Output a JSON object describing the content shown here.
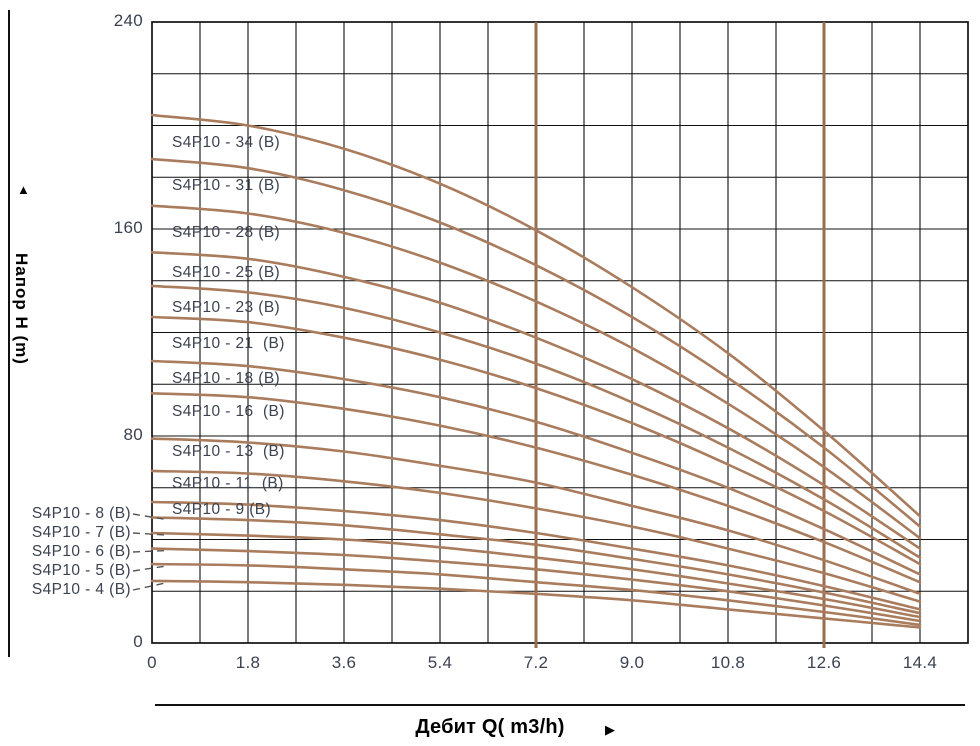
{
  "icons": {
    "up_arrow": "▲",
    "right_arrow": "▶"
  },
  "colors": {
    "curve": "#aa7c5e",
    "limit_line": "#996e50",
    "grid": "#111111",
    "tick_text": "#3b4250",
    "title_text": "#000000"
  },
  "chart_data": {
    "type": "line",
    "title": "",
    "xlabel": "Дебит Q( m3/h)",
    "ylabel": "Напор H (m)",
    "grid": true,
    "xlim": [
      0,
      15.3
    ],
    "ylim": [
      0,
      240
    ],
    "x_minor_step": 0.9,
    "y_minor_step": 20,
    "x": [
      0,
      1.8,
      3.6,
      5.4,
      7.2,
      9.0,
      10.8,
      12.6,
      14.4
    ],
    "x_tick_labels": [
      "0",
      "1.8",
      "3.6",
      "5.4",
      "7.2",
      "9.0",
      "10.8",
      "12.6",
      "14.4"
    ],
    "y_ticks": [
      240,
      160,
      80,
      0
    ],
    "y_tick_labels": [
      "240",
      "160",
      "80",
      "0"
    ],
    "limit_lines_x": [
      7.2,
      12.6
    ],
    "legend_position": "labels-on-curves",
    "series": [
      {
        "name": "S4P10 - 34 (B)",
        "label_placement": "inside",
        "values": [
          204,
          200,
          191,
          177.5,
          159.5,
          137.5,
          112,
          82,
          49
        ]
      },
      {
        "name": "S4P10 - 31 (B)",
        "label_placement": "inside",
        "values": [
          187,
          183.5,
          175,
          162.5,
          146,
          126,
          102.5,
          75.5,
          45
        ]
      },
      {
        "name": "S4P10 - 28 (B)",
        "label_placement": "inside",
        "values": [
          169,
          166,
          158.5,
          147,
          132,
          114,
          92.5,
          68,
          40.5
        ]
      },
      {
        "name": "S4P10 - 25 (B)",
        "label_placement": "inside",
        "values": [
          151,
          148.5,
          141.5,
          131.5,
          118,
          102,
          83,
          61,
          36.5
        ]
      },
      {
        "name": "S4P10 - 23 (B)",
        "label_placement": "inside",
        "values": [
          138,
          135.5,
          129.5,
          120,
          108,
          93,
          75.5,
          55.5,
          33
        ]
      },
      {
        "name": "S4P10 - 21  (B)",
        "label_placement": "inside",
        "values": [
          126,
          124,
          118,
          109.5,
          98.5,
          85,
          69,
          51,
          30.5
        ]
      },
      {
        "name": "S4P10 - 18 (B)",
        "label_placement": "inside",
        "values": [
          109,
          107,
          102,
          95,
          85.5,
          73.5,
          60,
          44,
          26.5
        ]
      },
      {
        "name": "S4P10 - 16  (B)",
        "label_placement": "inside",
        "values": [
          96.5,
          95,
          90.5,
          84,
          75.5,
          65,
          53,
          39,
          23.5
        ]
      },
      {
        "name": "S4P10 - 13  (B)",
        "label_placement": "inside",
        "values": [
          79,
          77.5,
          74,
          68.5,
          62,
          53,
          43.5,
          32,
          19
        ]
      },
      {
        "name": "S4P10 - 11  (B)",
        "label_placement": "inside",
        "values": [
          66.5,
          65.5,
          62.5,
          58,
          52,
          45,
          36.5,
          27,
          16
        ]
      },
      {
        "name": "S4P10 - 9 (B)",
        "label_placement": "inside",
        "values": [
          54.5,
          53.5,
          51,
          47.5,
          42.5,
          36.5,
          30,
          22,
          13
        ]
      },
      {
        "name": "S4P10 - 8 (B)",
        "label_placement": "outside",
        "values": [
          48.5,
          47.5,
          45.5,
          42,
          38,
          32.5,
          26.5,
          19.5,
          11.5
        ]
      },
      {
        "name": "S4P10 - 7 (B)",
        "label_placement": "outside",
        "values": [
          42.5,
          41.5,
          40,
          37,
          33,
          28.5,
          23,
          17,
          10
        ]
      },
      {
        "name": "S4P10 - 6 (B)",
        "label_placement": "outside",
        "values": [
          36.5,
          35.5,
          34,
          31.5,
          28.5,
          24.5,
          20,
          14.5,
          8.5
        ]
      },
      {
        "name": "S4P10 - 5 (B)",
        "label_placement": "outside",
        "values": [
          30.5,
          30,
          28.5,
          26.5,
          23.5,
          20.5,
          16.5,
          12,
          7
        ]
      },
      {
        "name": "S4P10 - 4 (B)",
        "label_placement": "outside",
        "values": [
          24,
          23.5,
          22.5,
          21,
          19,
          16.5,
          13,
          9.5,
          6
        ]
      }
    ]
  }
}
